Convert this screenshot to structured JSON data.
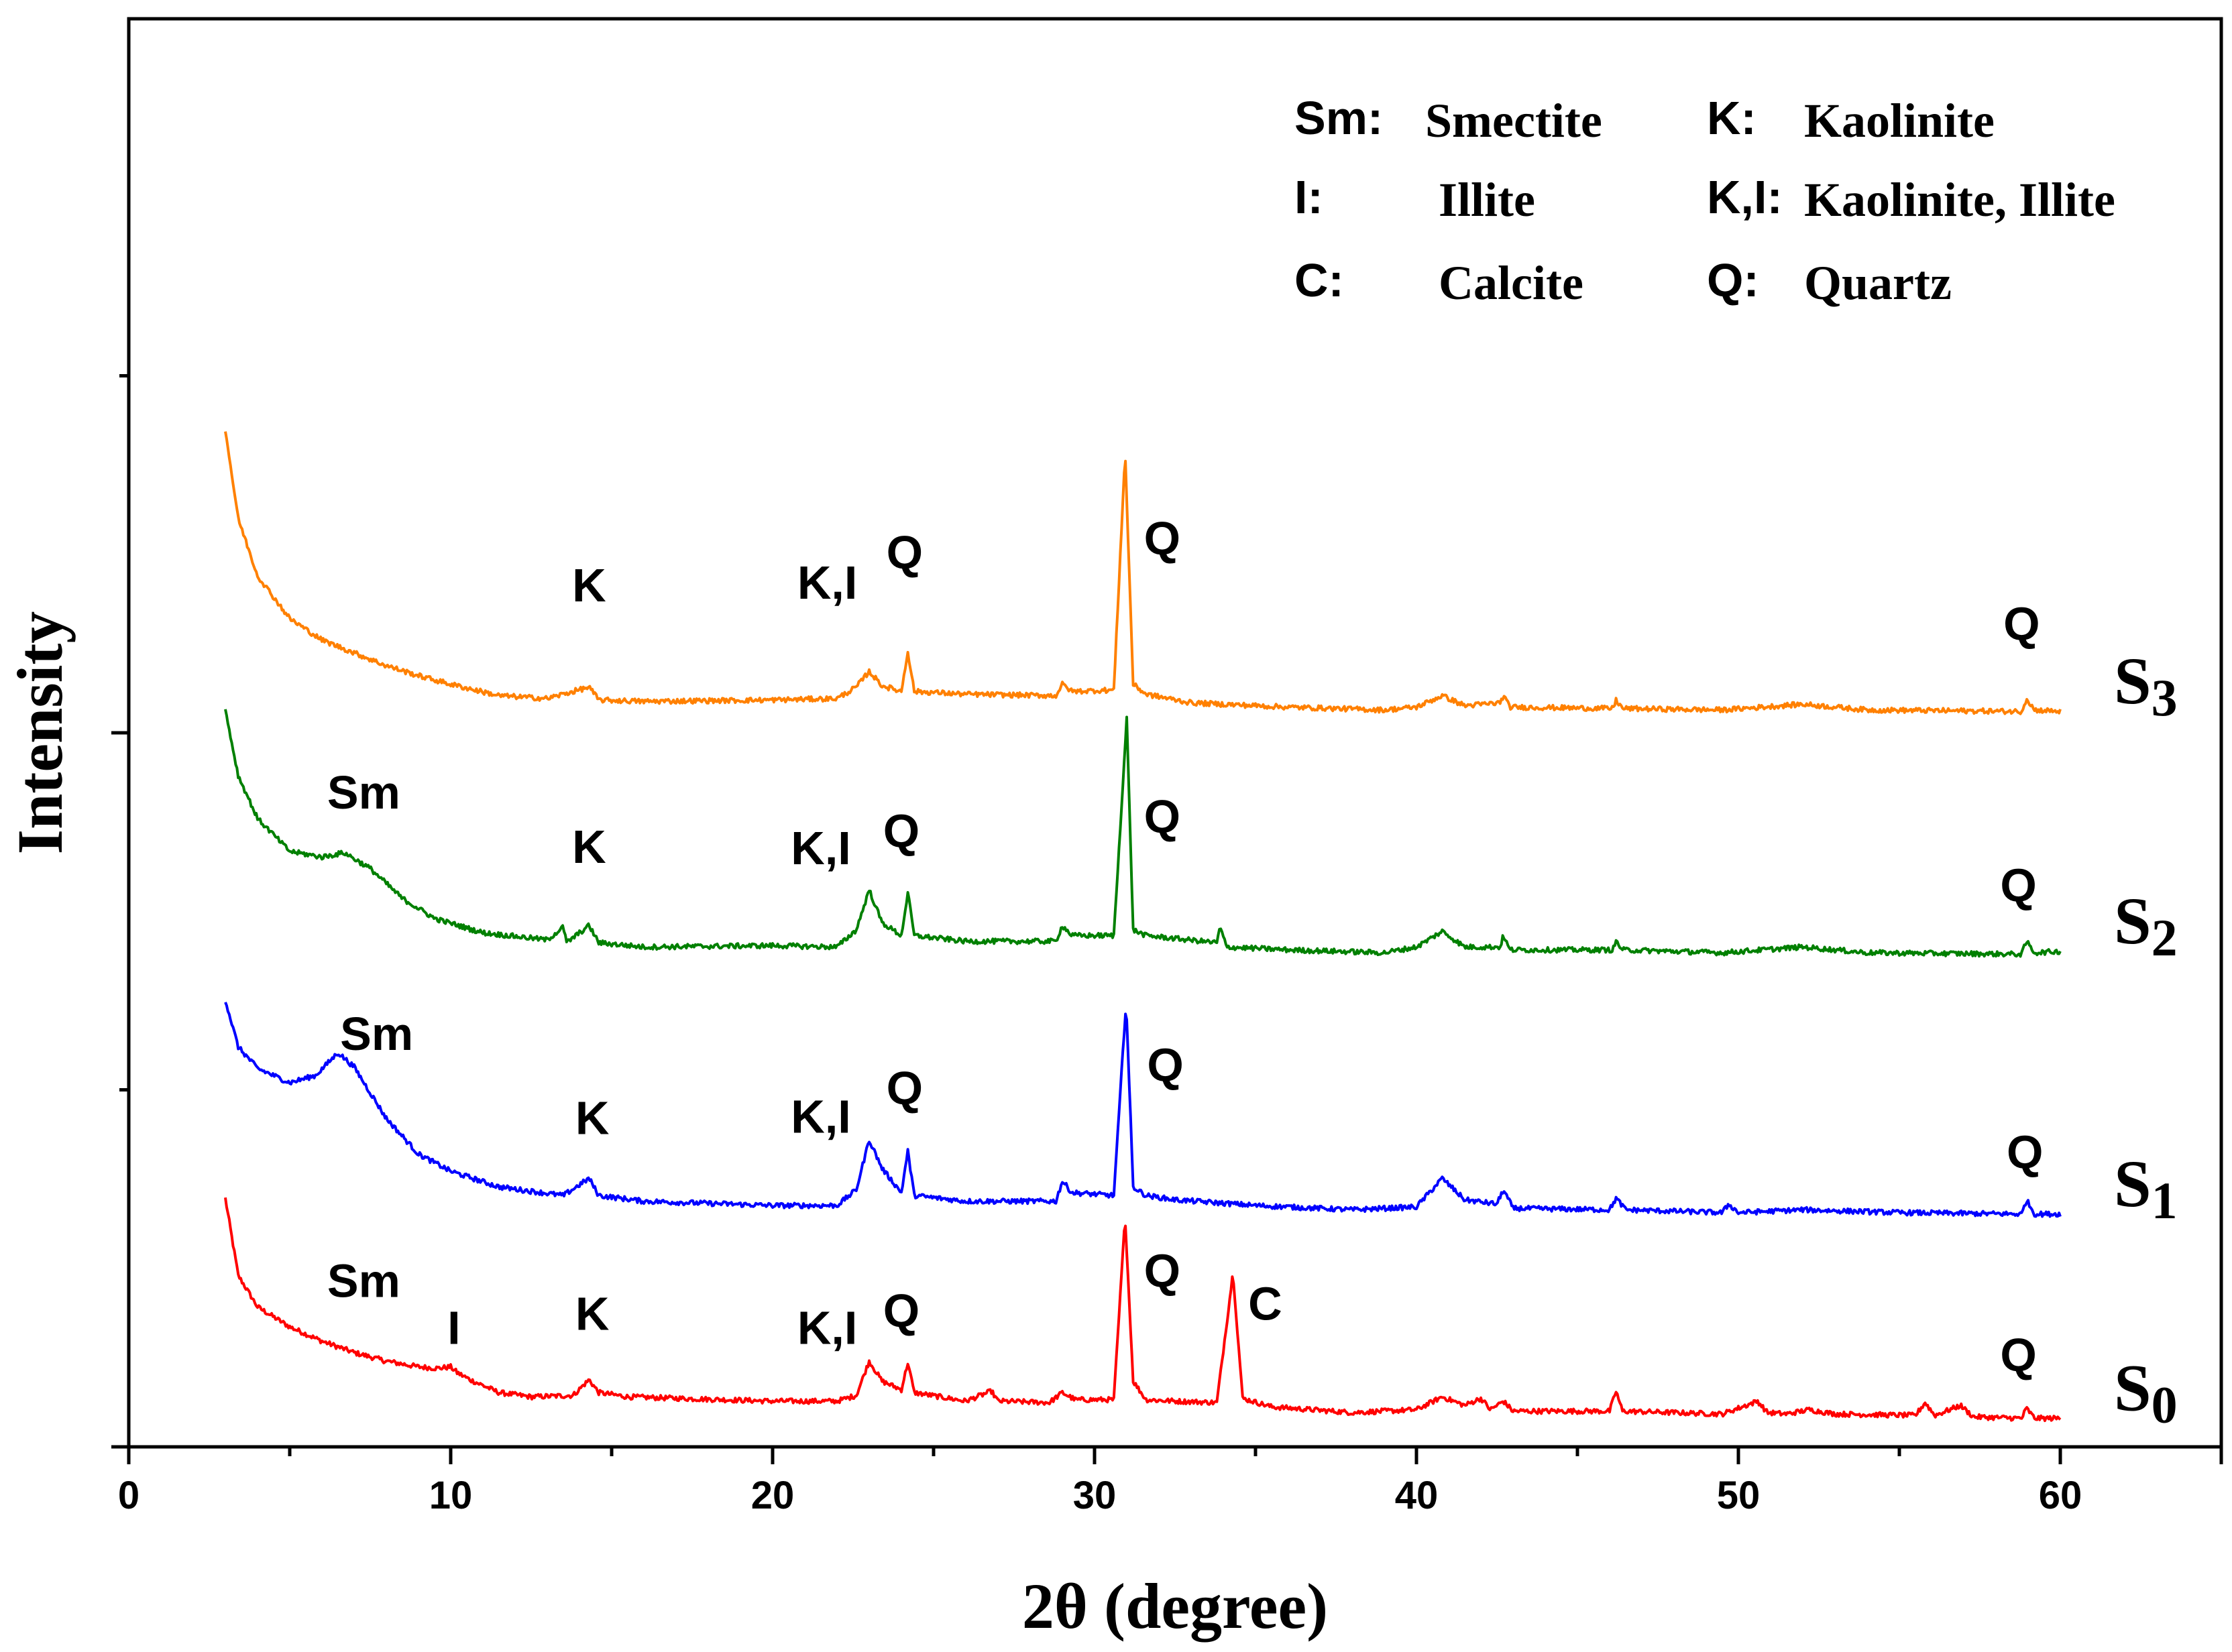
{
  "chart_data": {
    "type": "line",
    "title": "",
    "xlabel": "2θ (degree)",
    "ylabel": "Intensity",
    "xlim": [
      0,
      65
    ],
    "ylim": [
      0,
      100
    ],
    "xticks": [
      0,
      10,
      20,
      30,
      40,
      50,
      60
    ],
    "xtick_labels": [
      "0",
      "10",
      "20",
      "30",
      "40",
      "50",
      "60"
    ],
    "y_major_ticks": [
      50
    ],
    "y_minor_ticks": [
      25,
      75
    ],
    "grid": false,
    "legend": [
      {
        "key": "Sm:",
        "value": "Smectite"
      },
      {
        "key": "I:",
        "value": "Illite"
      },
      {
        "key": "C:",
        "value": "Calcite"
      },
      {
        "key": "K:",
        "value": "Kaolinite"
      },
      {
        "key": "K,I:",
        "value": "Kaolinite, Illite"
      },
      {
        "key": "Q:",
        "value": "Quartz"
      }
    ],
    "legend_position": "top-right",
    "series": [
      {
        "name": "S0",
        "name_main": "S",
        "name_sub": "0",
        "color": "#ff0000",
        "baseline_end": 3.9,
        "points": [
          [
            3.0,
            17.4
          ],
          [
            3.4,
            12
          ],
          [
            4.0,
            9.8
          ],
          [
            5.0,
            8.4
          ],
          [
            6.0,
            7.4
          ],
          [
            7.0,
            6.6
          ],
          [
            8.0,
            6.0
          ],
          [
            9.0,
            5.6
          ],
          [
            9.6,
            5.5
          ],
          [
            10.0,
            5.6
          ],
          [
            10.2,
            5.2
          ],
          [
            10.6,
            4.7
          ],
          [
            11.5,
            3.8
          ],
          [
            12.5,
            3.5
          ],
          [
            13.8,
            3.6
          ],
          [
            14.3,
            4.7
          ],
          [
            14.6,
            3.8
          ],
          [
            15.5,
            3.5
          ],
          [
            17.0,
            3.4
          ],
          [
            20.0,
            3.2
          ],
          [
            22.0,
            3.2
          ],
          [
            22.6,
            3.6
          ],
          [
            23.0,
            6.0
          ],
          [
            23.4,
            4.6
          ],
          [
            24.0,
            4.0
          ],
          [
            24.2,
            5.9
          ],
          [
            24.4,
            3.8
          ],
          [
            26.0,
            3.2
          ],
          [
            26.8,
            3.9
          ],
          [
            27.0,
            3.2
          ],
          [
            28.6,
            3.1
          ],
          [
            29.0,
            3.8
          ],
          [
            29.4,
            3.3
          ],
          [
            30.6,
            3.3
          ],
          [
            30.95,
            16.1
          ],
          [
            31.2,
            4.6
          ],
          [
            31.6,
            3.3
          ],
          [
            32.5,
            3.2
          ],
          [
            33.8,
            3.1
          ],
          [
            34.3,
            12.2
          ],
          [
            34.6,
            3.4
          ],
          [
            35.5,
            2.8
          ],
          [
            38.0,
            2.4
          ],
          [
            40.0,
            2.6
          ],
          [
            40.8,
            3.5
          ],
          [
            41.5,
            2.9
          ],
          [
            42.0,
            3.4
          ],
          [
            42.3,
            2.6
          ],
          [
            42.7,
            3.2
          ],
          [
            43.0,
            2.5
          ],
          [
            46.0,
            2.5
          ],
          [
            46.2,
            3.9
          ],
          [
            46.4,
            2.5
          ],
          [
            49.5,
            2.3
          ],
          [
            50.6,
            3.2
          ],
          [
            50.9,
            2.4
          ],
          [
            51.5,
            2.3
          ],
          [
            52.2,
            2.6
          ],
          [
            53.0,
            2.3
          ],
          [
            55.5,
            2.2
          ],
          [
            55.8,
            3.1
          ],
          [
            56.1,
            2.2
          ],
          [
            56.9,
            2.9
          ],
          [
            57.3,
            2.1
          ],
          [
            58.8,
            2.0
          ],
          [
            58.95,
            2.7
          ],
          [
            59.2,
            2.0
          ],
          [
            60.0,
            2.0
          ]
        ]
      },
      {
        "name": "S1",
        "name_main": "S",
        "name_sub": "1",
        "color": "#0000ff",
        "baseline_end": 3.0,
        "points": [
          [
            3.0,
            31.3
          ],
          [
            3.4,
            28.0
          ],
          [
            4.0,
            26.5
          ],
          [
            5.0,
            25.5
          ],
          [
            5.8,
            26.0
          ],
          [
            6.5,
            27.6
          ],
          [
            7.0,
            26.6
          ],
          [
            8.0,
            23.0
          ],
          [
            9.0,
            20.5
          ],
          [
            10.0,
            19.3
          ],
          [
            11.5,
            18.2
          ],
          [
            13.5,
            17.6
          ],
          [
            14.3,
            18.8
          ],
          [
            14.6,
            17.6
          ],
          [
            16.0,
            17.2
          ],
          [
            20.0,
            16.9
          ],
          [
            22.0,
            16.9
          ],
          [
            22.6,
            18.0
          ],
          [
            23.0,
            21.5
          ],
          [
            23.4,
            19.5
          ],
          [
            24.0,
            17.8
          ],
          [
            24.2,
            20.7
          ],
          [
            24.4,
            17.6
          ],
          [
            26.0,
            17.2
          ],
          [
            28.8,
            17.2
          ],
          [
            29.0,
            18.6
          ],
          [
            29.3,
            17.8
          ],
          [
            30.6,
            17.6
          ],
          [
            30.98,
            31.2
          ],
          [
            31.2,
            18.2
          ],
          [
            31.6,
            17.6
          ],
          [
            32.5,
            17.3
          ],
          [
            35.0,
            16.9
          ],
          [
            38.0,
            16.6
          ],
          [
            40.0,
            16.8
          ],
          [
            40.8,
            18.8
          ],
          [
            41.5,
            17.3
          ],
          [
            42.5,
            17.0
          ],
          [
            42.7,
            18.0
          ],
          [
            43.0,
            16.7
          ],
          [
            46.0,
            16.6
          ],
          [
            46.2,
            17.4
          ],
          [
            46.5,
            16.6
          ],
          [
            49.5,
            16.4
          ],
          [
            49.7,
            17.0
          ],
          [
            50.0,
            16.4
          ],
          [
            52.0,
            16.6
          ],
          [
            55.0,
            16.4
          ],
          [
            58.8,
            16.3
          ],
          [
            58.95,
            17.3
          ],
          [
            59.2,
            16.3
          ],
          [
            60.0,
            16.3
          ]
        ]
      },
      {
        "name": "S2",
        "name_main": "S",
        "name_sub": "2",
        "color": "#008000",
        "baseline_end": 3.2,
        "points": [
          [
            3.0,
            51.6
          ],
          [
            3.4,
            47.0
          ],
          [
            4.0,
            44.0
          ],
          [
            5.0,
            41.7
          ],
          [
            6.0,
            41.3
          ],
          [
            6.7,
            41.6
          ],
          [
            7.5,
            40.5
          ],
          [
            8.5,
            38.4
          ],
          [
            9.5,
            37.0
          ],
          [
            11.0,
            36.0
          ],
          [
            13.0,
            35.5
          ],
          [
            13.5,
            36.4
          ],
          [
            13.6,
            35.3
          ],
          [
            14.3,
            36.5
          ],
          [
            14.6,
            35.3
          ],
          [
            16.0,
            35.0
          ],
          [
            20.0,
            35.1
          ],
          [
            22.0,
            35.0
          ],
          [
            22.6,
            36.2
          ],
          [
            23.0,
            39.0
          ],
          [
            23.4,
            36.7
          ],
          [
            24.0,
            35.8
          ],
          [
            24.2,
            38.8
          ],
          [
            24.4,
            35.8
          ],
          [
            26.0,
            35.4
          ],
          [
            28.8,
            35.4
          ],
          [
            29.0,
            36.5
          ],
          [
            29.3,
            35.8
          ],
          [
            30.6,
            35.8
          ],
          [
            31.0,
            51.0
          ],
          [
            31.2,
            36.2
          ],
          [
            31.6,
            35.8
          ],
          [
            33.8,
            35.3
          ],
          [
            33.9,
            36.4
          ],
          [
            34.1,
            35.0
          ],
          [
            36.0,
            34.8
          ],
          [
            39.0,
            34.6
          ],
          [
            40.0,
            35.0
          ],
          [
            40.8,
            36.1
          ],
          [
            41.5,
            35.0
          ],
          [
            42.6,
            35.0
          ],
          [
            42.7,
            35.8
          ],
          [
            42.9,
            34.8
          ],
          [
            46.1,
            34.8
          ],
          [
            46.2,
            35.4
          ],
          [
            46.4,
            34.8
          ],
          [
            49.5,
            34.6
          ],
          [
            52.0,
            35.0
          ],
          [
            54.0,
            34.6
          ],
          [
            58.8,
            34.5
          ],
          [
            58.95,
            35.4
          ],
          [
            59.2,
            34.6
          ],
          [
            60.0,
            34.7
          ]
        ]
      },
      {
        "name": "S3",
        "name_main": "S",
        "name_sub": "3",
        "color": "#ff8000",
        "baseline_end": 3.5,
        "points": [
          [
            3.0,
            71.2
          ],
          [
            3.4,
            65.0
          ],
          [
            4.0,
            61.0
          ],
          [
            5.0,
            58.0
          ],
          [
            6.0,
            56.5
          ],
          [
            7.0,
            55.6
          ],
          [
            8.0,
            54.7
          ],
          [
            9.0,
            54.0
          ],
          [
            10.0,
            53.4
          ],
          [
            11.5,
            52.6
          ],
          [
            13.0,
            52.4
          ],
          [
            14.3,
            53.2
          ],
          [
            14.6,
            52.3
          ],
          [
            16.0,
            52.2
          ],
          [
            20.0,
            52.3
          ],
          [
            22.0,
            52.4
          ],
          [
            22.6,
            53.2
          ],
          [
            23.0,
            54.3
          ],
          [
            23.4,
            53.3
          ],
          [
            24.0,
            52.9
          ],
          [
            24.2,
            55.7
          ],
          [
            24.4,
            52.9
          ],
          [
            26.0,
            52.7
          ],
          [
            28.8,
            52.6
          ],
          [
            29.0,
            53.4
          ],
          [
            29.3,
            52.9
          ],
          [
            30.6,
            53.0
          ],
          [
            30.95,
            69.6
          ],
          [
            31.2,
            53.4
          ],
          [
            31.6,
            52.7
          ],
          [
            33.0,
            52.1
          ],
          [
            36.0,
            51.8
          ],
          [
            39.0,
            51.6
          ],
          [
            40.0,
            51.8
          ],
          [
            40.8,
            52.6
          ],
          [
            41.5,
            51.9
          ],
          [
            42.6,
            52.1
          ],
          [
            42.7,
            52.6
          ],
          [
            42.9,
            51.8
          ],
          [
            46.1,
            51.7
          ],
          [
            46.2,
            52.3
          ],
          [
            46.4,
            51.7
          ],
          [
            49.5,
            51.6
          ],
          [
            52.0,
            52.0
          ],
          [
            54.0,
            51.6
          ],
          [
            58.8,
            51.5
          ],
          [
            58.95,
            52.4
          ],
          [
            59.2,
            51.6
          ],
          [
            60.0,
            51.5
          ]
        ]
      }
    ],
    "annotations": [
      {
        "text": "Sm",
        "x": 7.3,
        "y": 10.5
      },
      {
        "text": "I",
        "x": 10.1,
        "y": 7.2
      },
      {
        "text": "K",
        "x": 14.4,
        "y": 8.2
      },
      {
        "text": "K,I",
        "x": 21.7,
        "y": 7.2
      },
      {
        "text": "Q",
        "x": 24.0,
        "y": 8.4
      },
      {
        "text": "Q",
        "x": 32.1,
        "y": 11.2
      },
      {
        "text": "C",
        "x": 35.3,
        "y": 8.9
      },
      {
        "text": "Q",
        "x": 58.7,
        "y": 5.3
      },
      {
        "text": "Sm",
        "x": 7.7,
        "y": 27.8
      },
      {
        "text": "K",
        "x": 14.4,
        "y": 21.9
      },
      {
        "text": "K,I",
        "x": 21.5,
        "y": 22.0
      },
      {
        "text": "Q",
        "x": 24.1,
        "y": 24.0
      },
      {
        "text": "Q",
        "x": 32.2,
        "y": 25.6
      },
      {
        "text": "Q",
        "x": 58.9,
        "y": 19.5
      },
      {
        "text": "Sm",
        "x": 7.3,
        "y": 44.7
      },
      {
        "text": "K",
        "x": 14.3,
        "y": 40.9
      },
      {
        "text": "K,I",
        "x": 21.5,
        "y": 40.8
      },
      {
        "text": "Q",
        "x": 24.0,
        "y": 42.0
      },
      {
        "text": "Q",
        "x": 32.1,
        "y": 43.0
      },
      {
        "text": "Q",
        "x": 58.7,
        "y": 38.2
      },
      {
        "text": "K",
        "x": 14.3,
        "y": 59.2
      },
      {
        "text": "K,I",
        "x": 21.7,
        "y": 59.4
      },
      {
        "text": "Q",
        "x": 24.1,
        "y": 61.5
      },
      {
        "text": "Q",
        "x": 32.1,
        "y": 62.5
      },
      {
        "text": "Q",
        "x": 58.8,
        "y": 56.5
      }
    ]
  }
}
